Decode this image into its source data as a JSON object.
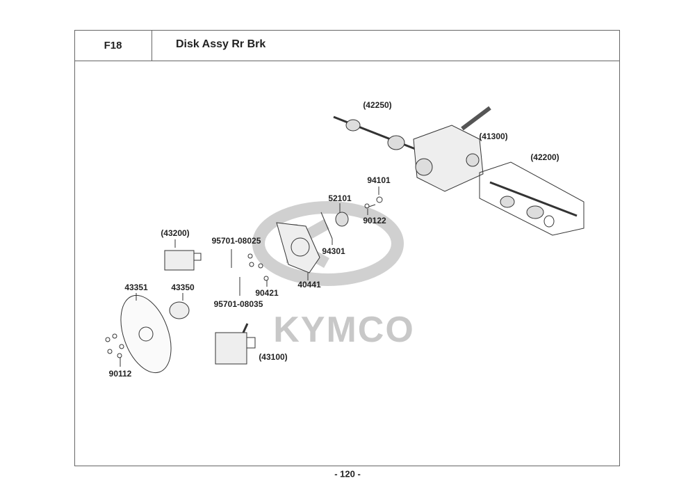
{
  "header": {
    "section_code": "F18",
    "title": "Disk Assy Rr Brk"
  },
  "watermark": {
    "brand": "KYMCO",
    "color": "#c8c8c8"
  },
  "callouts": [
    {
      "id": "42250",
      "text": "(42250)"
    },
    {
      "id": "41300",
      "text": "(41300)"
    },
    {
      "id": "42200",
      "text": "(42200)"
    },
    {
      "id": "94101",
      "text": "94101"
    },
    {
      "id": "52101",
      "text": "52101"
    },
    {
      "id": "90122",
      "text": "90122"
    },
    {
      "id": "43200",
      "text": "(43200)"
    },
    {
      "id": "95701-08025",
      "text": "95701-08025"
    },
    {
      "id": "94301",
      "text": "94301"
    },
    {
      "id": "40441",
      "text": "40441"
    },
    {
      "id": "43351",
      "text": "43351"
    },
    {
      "id": "43350",
      "text": "43350"
    },
    {
      "id": "90421",
      "text": "90421"
    },
    {
      "id": "95701-08035",
      "text": "95701-08035"
    },
    {
      "id": "43100",
      "text": "(43100)"
    },
    {
      "id": "90112",
      "text": "90112"
    }
  ],
  "footer": {
    "page_number": "- 120 -"
  }
}
